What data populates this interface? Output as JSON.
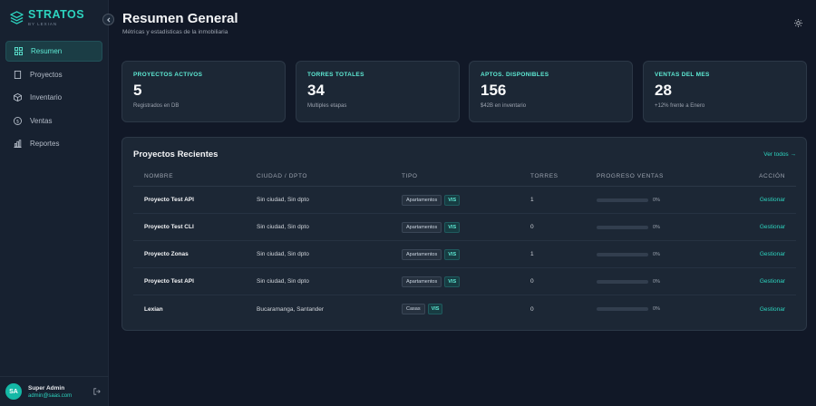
{
  "brand": {
    "name": "STRATOS",
    "sub": "BY LEXIAN",
    "accent": "#2dd4bf"
  },
  "sidebar": {
    "items": [
      {
        "label": "Resumen",
        "icon": "grid-icon",
        "active": true
      },
      {
        "label": "Proyectos",
        "icon": "building-icon"
      },
      {
        "label": "Inventario",
        "icon": "box-icon"
      },
      {
        "label": "Ventas",
        "icon": "dollar-icon"
      },
      {
        "label": "Reportes",
        "icon": "bar-chart-icon"
      }
    ]
  },
  "user": {
    "initials": "SA",
    "name": "Super Admin",
    "email": "admin@saas.com"
  },
  "header": {
    "title": "Resumen General",
    "subtitle": "Métricas y estadísticas de la inmobiliaria"
  },
  "stats": [
    {
      "label": "PROYECTOS ACTIVOS",
      "value": "5",
      "note": "Registrados en DB"
    },
    {
      "label": "TORRES TOTALES",
      "value": "34",
      "note": "Multiples etapas"
    },
    {
      "label": "APTOS. DISPONIBLES",
      "value": "156",
      "note": "$42B en inventario"
    },
    {
      "label": "VENTAS DEL MES",
      "value": "28",
      "note": "+12% frente a Enero"
    }
  ],
  "projects": {
    "title": "Proyectos Recientes",
    "link": "Ver todos →",
    "columns": [
      "NOMBRE",
      "CIUDAD / DPTO",
      "TIPO",
      "TORRES",
      "PROGRESO VENTAS",
      "ACCIÓN"
    ],
    "rows": [
      {
        "name": "Proyecto Test API",
        "city": "Sin ciudad, Sin dpto",
        "type": "Apartamentos",
        "tag": "VIS",
        "towers": "1",
        "progress": 0,
        "pct": "0%",
        "action": "Gestionar"
      },
      {
        "name": "Proyecto Test CLI",
        "city": "Sin ciudad, Sin dpto",
        "type": "Apartamentos",
        "tag": "VIS",
        "towers": "0",
        "progress": 0,
        "pct": "0%",
        "action": "Gestionar"
      },
      {
        "name": "Proyecto Zonas",
        "city": "Sin ciudad, Sin dpto",
        "type": "Apartamentos",
        "tag": "VIS",
        "towers": "1",
        "progress": 0,
        "pct": "0%",
        "action": "Gestionar"
      },
      {
        "name": "Proyecto Test API",
        "city": "Sin ciudad, Sin dpto",
        "type": "Apartamentos",
        "tag": "VIS",
        "towers": "0",
        "progress": 0,
        "pct": "0%",
        "action": "Gestionar"
      },
      {
        "name": "Lexian",
        "city": "Bucaramanga, Santander",
        "type": "Casas",
        "tag": "VIS",
        "towers": "0",
        "progress": 0,
        "pct": "0%",
        "action": "Gestionar"
      }
    ]
  }
}
